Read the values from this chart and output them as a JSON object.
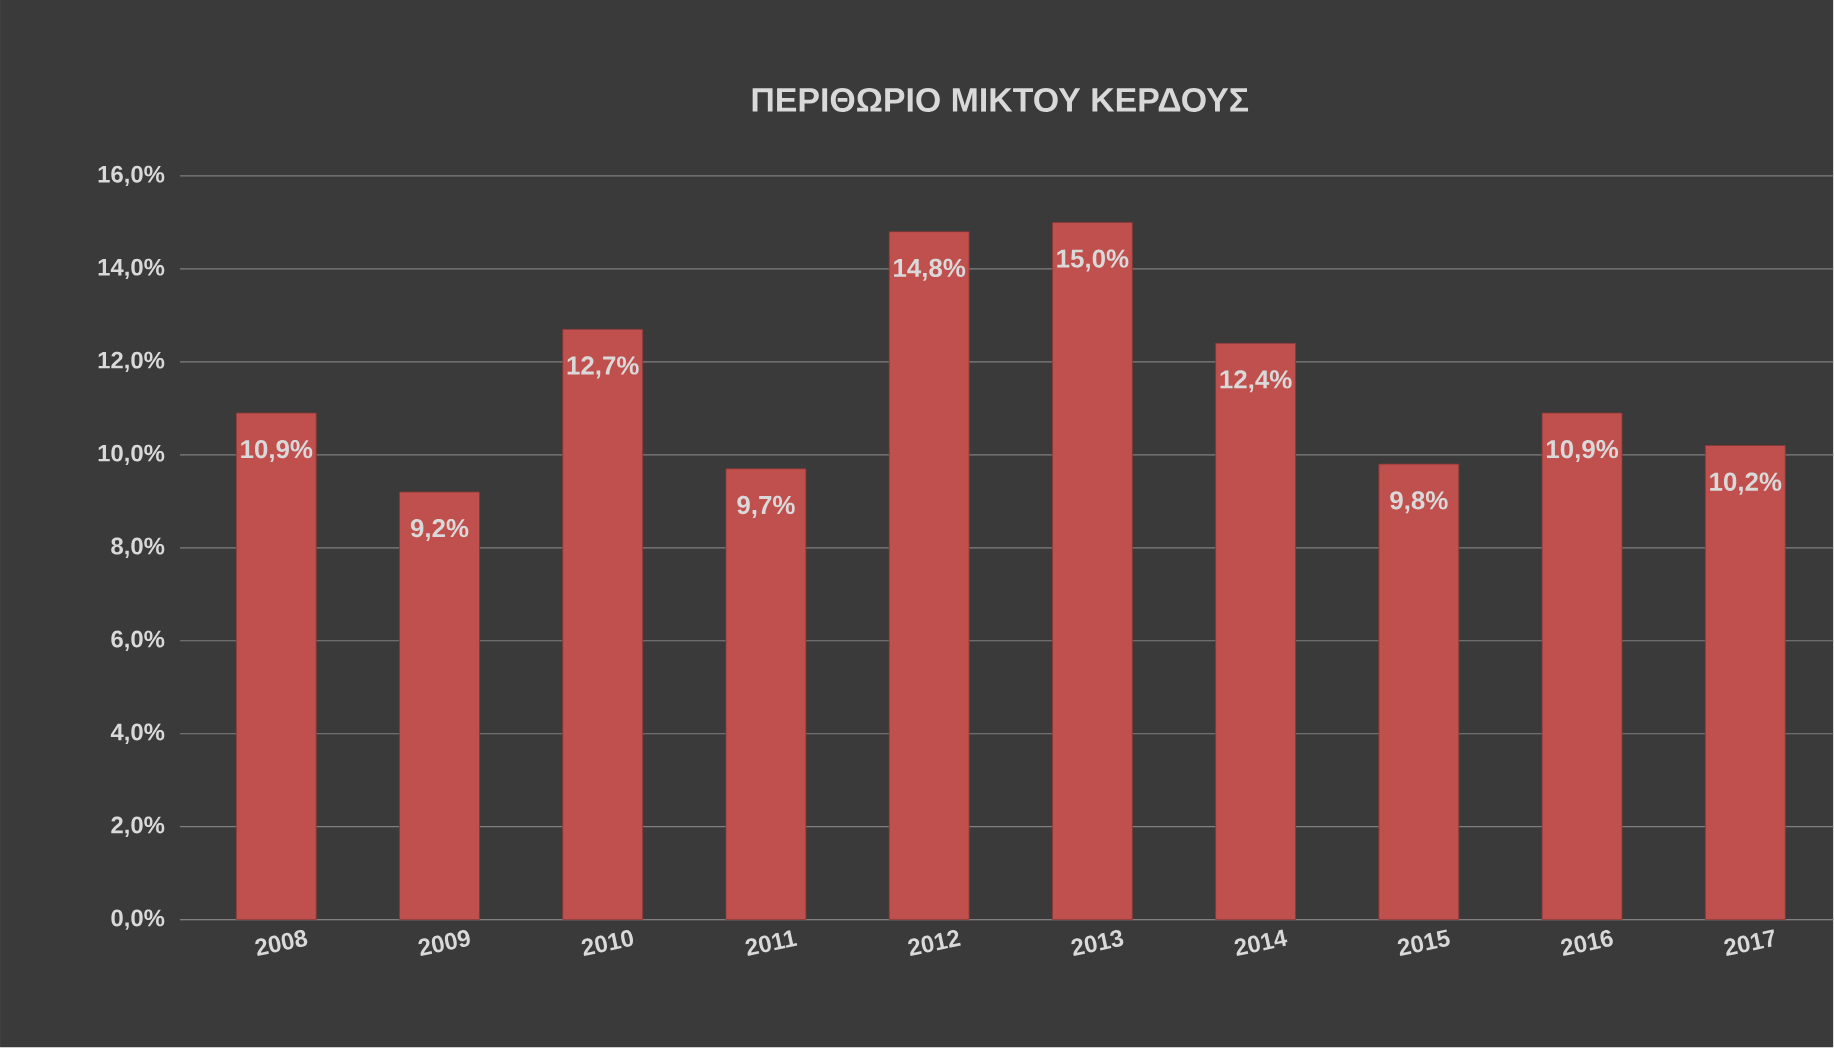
{
  "chart_data": {
    "type": "bar",
    "title": "ΠΕΡΙΘΩΡΙΟ ΜΙΚΤΟΥ ΚΕΡΔΟΥΣ",
    "categories": [
      "2008",
      "2009",
      "2010",
      "2011",
      "2012",
      "2013",
      "2014",
      "2015",
      "2016",
      "2017"
    ],
    "values": [
      10.9,
      9.2,
      12.7,
      9.7,
      14.8,
      15.0,
      12.4,
      9.8,
      10.9,
      10.2
    ],
    "value_labels": [
      "10,9%",
      "9,2%",
      "12,7%",
      "9,7%",
      "14,8%",
      "15,0%",
      "12,4%",
      "9,8%",
      "10,9%",
      "10,2%"
    ],
    "color": "#c0504d",
    "ylim": [
      0,
      16
    ],
    "yticks": [
      {
        "value": 0,
        "label": "0,0%"
      },
      {
        "value": 2,
        "label": "2,0%"
      },
      {
        "value": 4,
        "label": "4,0%"
      },
      {
        "value": 6,
        "label": "6,0%"
      },
      {
        "value": 8,
        "label": "8,0%"
      },
      {
        "value": 10,
        "label": "10,0%"
      },
      {
        "value": 12,
        "label": "12,0%"
      },
      {
        "value": 14,
        "label": "14,0%"
      },
      {
        "value": 16,
        "label": "16,0%"
      }
    ],
    "grid": "y"
  }
}
